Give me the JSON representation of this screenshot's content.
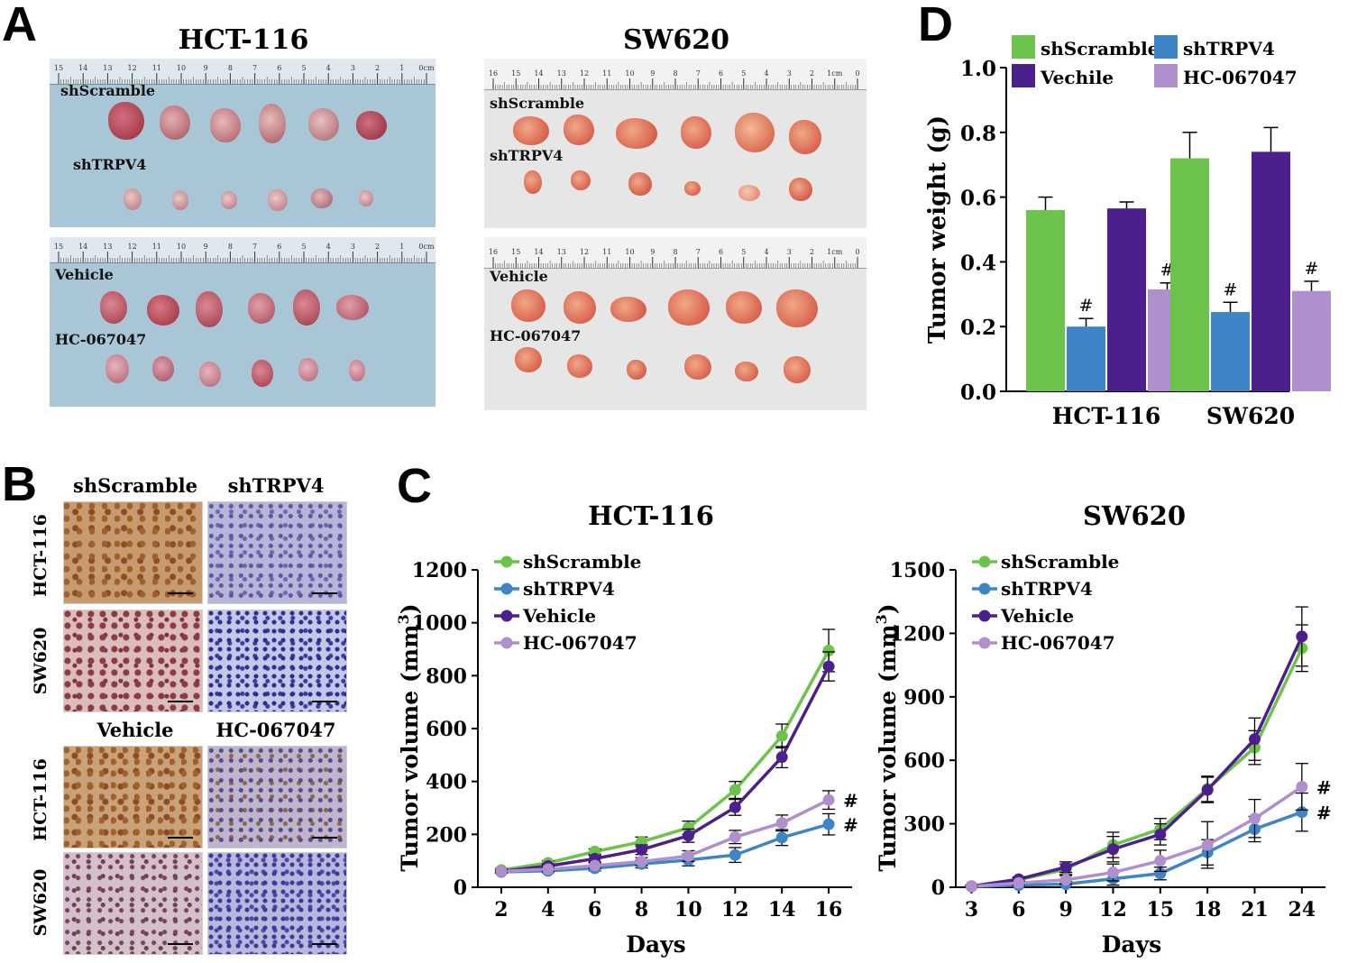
{
  "panels": {
    "a": "A",
    "b": "B",
    "c": "C",
    "d": "D"
  },
  "panel_a": {
    "hct_title": "HCT-116",
    "sw_title": "SW620",
    "hct_top": {
      "label1": "shScramble",
      "label2": "shTRPV4"
    },
    "hct_bottom": {
      "label1": "Vehicle",
      "label2": "HC-067047"
    },
    "sw_top": {
      "label1": "shScramble",
      "label2": "shTRPV4"
    },
    "sw_bottom": {
      "label1": "Vehicle",
      "label2": "HC-067047"
    },
    "ruler_hct": [
      "15",
      "14",
      "13",
      "12",
      "11",
      "10",
      "9",
      "8",
      "7",
      "6",
      "5",
      "4",
      "3",
      "2",
      "1",
      "0cm"
    ],
    "ruler_sw": [
      "16",
      "15",
      "14",
      "13",
      "12",
      "11",
      "10",
      "9",
      "8",
      "7",
      "6",
      "5",
      "4",
      "3",
      "2",
      "1cm",
      "0"
    ]
  },
  "panel_b": {
    "col1": "shScramble",
    "col2": "shTRPV4",
    "col3": "Vehicle",
    "col4": "HC-067047",
    "row_hct": "HCT-116",
    "row_sw": "SW620"
  },
  "colors": {
    "shScramble": "#6cc24a",
    "shTRPV4": "#3d85c6",
    "Vehicle": "#4b1f8c",
    "HC-067047": "#b08fcd"
  },
  "chart_data": [
    {
      "type": "line",
      "title": "HCT-116",
      "xlabel": "Days",
      "ylabel": "Tumor volume (mm3)",
      "x": [
        2,
        4,
        6,
        8,
        10,
        12,
        14,
        16
      ],
      "xlim": [
        1,
        17
      ],
      "ylim": [
        0,
        1200
      ],
      "yticks": [
        0,
        200,
        400,
        600,
        800,
        1000,
        1200
      ],
      "legend": [
        "shScramble",
        "shTRPV4",
        "Vehicle",
        "HC-067047"
      ],
      "series": [
        {
          "name": "shScramble",
          "values": [
            65,
            92,
            135,
            172,
            225,
            368,
            572,
            895
          ],
          "errors": [
            6,
            8,
            10,
            18,
            25,
            32,
            45,
            80
          ]
        },
        {
          "name": "shTRPV4",
          "values": [
            58,
            62,
            72,
            88,
            103,
            122,
            188,
            238
          ],
          "errors": [
            5,
            7,
            10,
            15,
            22,
            28,
            30,
            40
          ]
        },
        {
          "name": "Vehicle",
          "values": [
            60,
            80,
            108,
            142,
            195,
            302,
            492,
            835
          ],
          "errors": [
            5,
            8,
            12,
            18,
            25,
            30,
            40,
            55
          ]
        },
        {
          "name": "HC-067047",
          "values": [
            60,
            68,
            82,
            97,
            118,
            190,
            243,
            330
          ],
          "errors": [
            5,
            7,
            10,
            15,
            20,
            25,
            30,
            35
          ]
        }
      ],
      "annotations": [
        "#",
        "#"
      ]
    },
    {
      "type": "line",
      "title": "SW620",
      "xlabel": "Days",
      "ylabel": "Tumor volume (mm3)",
      "x": [
        3,
        6,
        9,
        12,
        15,
        18,
        21,
        24
      ],
      "xlim": [
        2,
        25.5
      ],
      "ylim": [
        0,
        1500
      ],
      "yticks": [
        0,
        300,
        600,
        900,
        1200,
        1500
      ],
      "legend": [
        "shScramble",
        "shTRPV4",
        "Vehicle",
        "HC-067047"
      ],
      "series": [
        {
          "name": "shScramble",
          "values": [
            5,
            35,
            85,
            200,
            275,
            465,
            660,
            1130
          ],
          "errors": [
            5,
            10,
            25,
            60,
            50,
            60,
            80,
            110
          ]
        },
        {
          "name": "shTRPV4",
          "values": [
            3,
            10,
            15,
            40,
            65,
            165,
            275,
            355
          ],
          "errors": [
            3,
            8,
            12,
            30,
            30,
            60,
            60,
            90
          ]
        },
        {
          "name": "Vehicle",
          "values": [
            5,
            38,
            95,
            180,
            250,
            460,
            700,
            1185
          ],
          "errors": [
            5,
            10,
            25,
            60,
            50,
            60,
            100,
            140
          ]
        },
        {
          "name": "HC-067047",
          "values": [
            4,
            20,
            35,
            70,
            125,
            200,
            325,
            475
          ],
          "errors": [
            4,
            10,
            20,
            40,
            50,
            110,
            90,
            110
          ]
        }
      ],
      "annotations": [
        "#",
        "#"
      ]
    },
    {
      "type": "bar",
      "title": "",
      "xlabel": "",
      "ylabel": "Tumor weight (g)",
      "categories": [
        "HCT-116",
        "SW620"
      ],
      "ylim": [
        0,
        1.0
      ],
      "yticks": [
        "0.0",
        "0.2",
        "0.4",
        "0.6",
        "0.8",
        "1.0"
      ],
      "legend": [
        "shScramble",
        "shTRPV4",
        "Vechile",
        "HC-067047"
      ],
      "series": [
        {
          "name": "shScramble",
          "values": [
            0.56,
            0.72
          ],
          "errors": [
            0.04,
            0.08
          ]
        },
        {
          "name": "shTRPV4",
          "values": [
            0.2,
            0.245
          ],
          "errors": [
            0.025,
            0.03
          ],
          "marks": [
            "#",
            "#"
          ]
        },
        {
          "name": "Vechile",
          "values": [
            0.565,
            0.74
          ],
          "errors": [
            0.02,
            0.075
          ]
        },
        {
          "name": "HC-067047",
          "values": [
            0.315,
            0.31
          ],
          "errors": [
            0.02,
            0.03
          ],
          "marks": [
            "#",
            "#"
          ]
        }
      ]
    }
  ]
}
